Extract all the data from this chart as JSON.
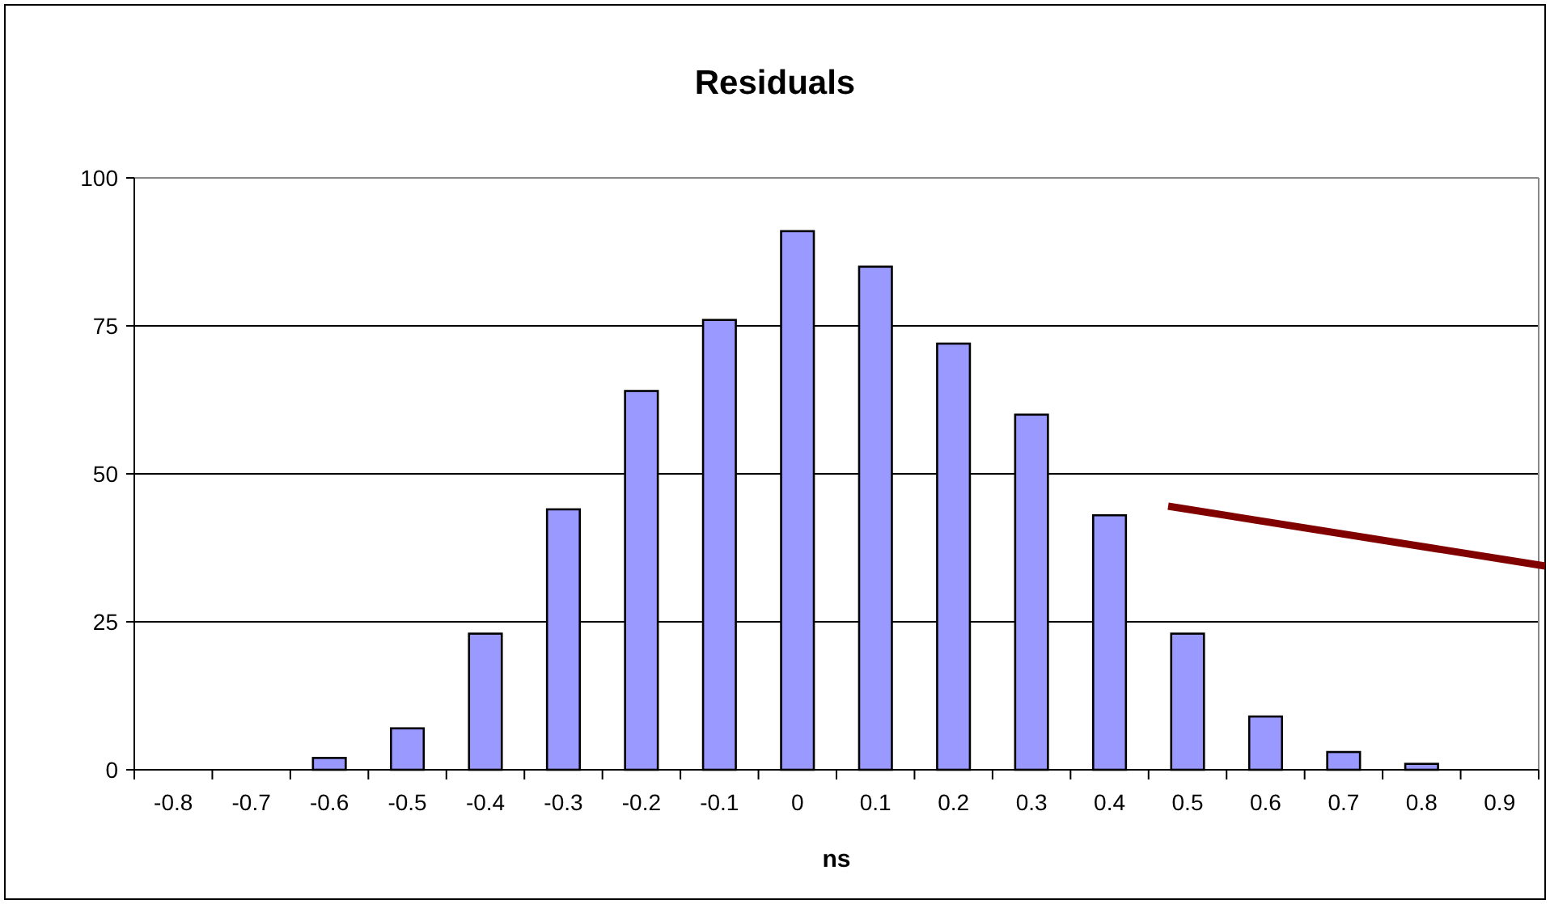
{
  "chart_data": {
    "type": "bar",
    "title": "Residuals",
    "xlabel": "ns",
    "categories": [
      "-0.8",
      "-0.7",
      "-0.6",
      "-0.5",
      "-0.4",
      "-0.3",
      "-0.2",
      "-0.1",
      "0",
      "0.1",
      "0.2",
      "0.3",
      "0.4",
      "0.5",
      "0.6",
      "0.7",
      "0.8",
      "0.9"
    ],
    "values": [
      0,
      0,
      2,
      7,
      23,
      44,
      64,
      76,
      91,
      85,
      72,
      60,
      43,
      23,
      9,
      3,
      1,
      0
    ],
    "color": "#9999ff",
    "ylim": [
      0,
      100
    ],
    "yticks": [
      0,
      25,
      50,
      75,
      100
    ],
    "grid": "y"
  }
}
